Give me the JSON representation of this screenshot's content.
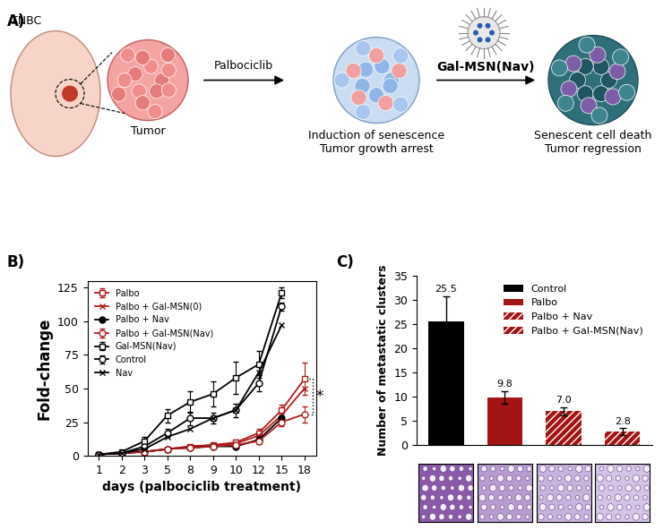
{
  "panel_a": {
    "label": "A)",
    "texts": {
      "site": "TNBC",
      "tumor": "Tumor",
      "drug": "Palbociclib",
      "nanoparticle": "Gal-MSN(Nav)",
      "stage2": [
        "Induction of senescence",
        "Tumor growth arrest"
      ],
      "stage3": [
        "Senescent cell death",
        "Tumor regression"
      ]
    }
  },
  "chart_data": [
    {
      "panel": "B)",
      "type": "line",
      "x_label": "days (palbociclib treatment)",
      "y_label": "Fold-change",
      "categories": [
        "1",
        "2",
        "3",
        "5",
        "8",
        "9",
        "10",
        "12",
        "15",
        "18"
      ],
      "ylim": [
        0,
        130
      ],
      "yticks": [
        0,
        25,
        50,
        75,
        100,
        125
      ],
      "legend": "upper left",
      "series": [
        {
          "name": "Palbo",
          "color": "#b01c1c",
          "marker": "square",
          "values": [
            1,
            2,
            3,
            5,
            7,
            8,
            10,
            17,
            34,
            57
          ],
          "errors": [
            0,
            0,
            1,
            1,
            1,
            1,
            2,
            3,
            4,
            12
          ]
        },
        {
          "name": "Palbo + Gal-MSN(0)",
          "color": "#b01c1c",
          "marker": "x",
          "values": [
            1,
            2,
            3,
            5,
            7,
            8,
            9,
            15,
            30,
            50
          ]
        },
        {
          "name": "Palbo + Nav",
          "color": "#000000",
          "marker": "filled_circle",
          "values": [
            1,
            2,
            3,
            5,
            6,
            7,
            7,
            12,
            28,
            null
          ]
        },
        {
          "name": "Palbo + Gal-MSN(Nav)",
          "color": "#b01c1c",
          "marker": "circle",
          "values": [
            1,
            2,
            3,
            5,
            6,
            7,
            8,
            11,
            25,
            31
          ],
          "errors": [
            0,
            0,
            1,
            1,
            1,
            1,
            1,
            2,
            3,
            6
          ]
        },
        {
          "name": "Gal-MSN(Nav)",
          "color": "#000000",
          "marker": "square",
          "values": [
            1,
            3,
            11,
            30,
            40,
            46,
            58,
            68,
            121,
            null
          ],
          "errors": [
            0,
            1,
            3,
            5,
            8,
            9,
            12,
            10,
            4,
            null
          ]
        },
        {
          "name": "Control",
          "color": "#000000",
          "marker": "circle",
          "values": [
            1,
            2,
            7,
            17,
            28,
            28,
            34,
            54,
            111,
            null
          ],
          "errors": [
            0,
            1,
            2,
            3,
            5,
            4,
            5,
            6,
            3,
            null
          ]
        },
        {
          "name": "Nav",
          "color": "#000000",
          "marker": "x",
          "values": [
            1,
            2,
            5,
            14,
            20,
            28,
            34,
            62,
            97,
            null
          ]
        }
      ],
      "annotations": [
        {
          "text": "*",
          "between": [
            "Palbo",
            "Palbo + Gal-MSN(Nav)"
          ]
        }
      ]
    },
    {
      "panel": "C)",
      "type": "bar",
      "y_label": "Number of metastatic clusters",
      "categories": [
        "Control",
        "Palbo",
        "Palbo + Nav",
        "Palbo + Gal-MSN(Nav)"
      ],
      "values": [
        25.5,
        9.8,
        7.0,
        2.8
      ],
      "value_labels": [
        "25.5",
        "9.8",
        "7.0",
        "2.8"
      ],
      "errors": [
        5.2,
        1.3,
        0.8,
        0.7
      ],
      "colors": [
        "#000000",
        "#a31515",
        "#a31515",
        "#a31515"
      ],
      "ylim": [
        0,
        35
      ],
      "yticks": [
        0,
        5,
        10,
        15,
        20,
        25,
        30,
        35
      ],
      "legend": "upper right",
      "data_labels": true,
      "tick_labels": "y"
    }
  ]
}
